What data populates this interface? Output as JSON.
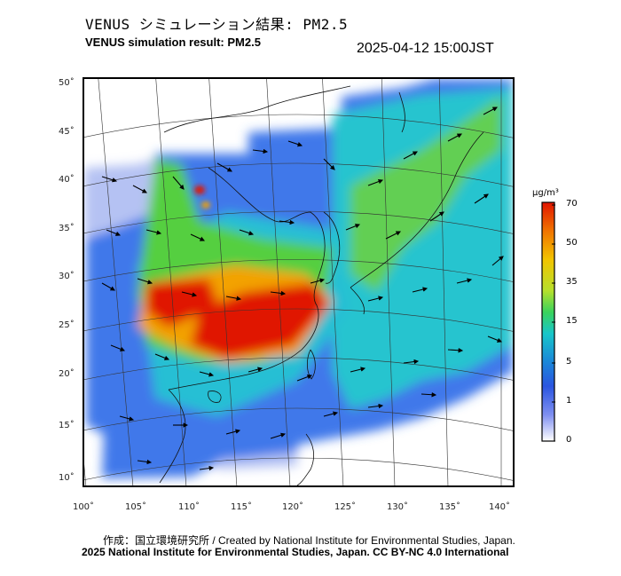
{
  "header": {
    "title_jp": "VENUS シミュレーション結果: PM2.5",
    "title_en": "VENUS simulation result: PM2.5",
    "timestamp": "2025-04-12 15:00JST"
  },
  "map": {
    "lat_labels": [
      "50˚",
      "45˚",
      "40˚",
      "35˚",
      "30˚",
      "25˚",
      "20˚",
      "15˚",
      "10˚"
    ],
    "lon_labels": [
      "100˚",
      "105˚",
      "110˚",
      "115˚",
      "120˚",
      "125˚",
      "130˚",
      "135˚",
      "140˚"
    ],
    "field_colors": {
      "very_high": "#e21a00",
      "high": "#f6a400",
      "medium": "#6fd33c",
      "moderate": "#21c2d6",
      "low": "#2f6fe6",
      "very_low": "#b8c4f2"
    }
  },
  "colorbar": {
    "unit": "μg/m³",
    "labels": [
      "70",
      "50",
      "35",
      "15",
      "5",
      "1",
      "0"
    ],
    "colors": [
      "#e11500",
      "#f07400",
      "#f2c400",
      "#b6e02c",
      "#3ad35c",
      "#18c6c9",
      "#1a8bd8",
      "#2a55e0",
      "#7f8ff0",
      "#ffffff"
    ]
  },
  "footer": {
    "credit_jp": "作成：国立環境研究所 / Created by National Institute for Environmental Studies, Japan.",
    "copyright": "2025 National Institute for Environmental Studies, Japan. CC BY-NC 4.0 International"
  }
}
